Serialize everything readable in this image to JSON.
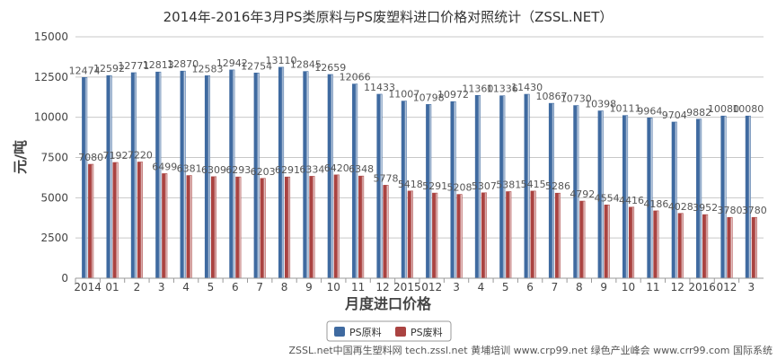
{
  "chart_data": {
    "type": "bar",
    "title": "2014年-2016年3月PS类原料与PS废塑料进口价格对照统计（ZSSL.NET）",
    "xlabel": "月度进口价格",
    "ylabel": "元/吨",
    "ylim": [
      0,
      15000
    ],
    "yticks": [
      0,
      2500,
      5000,
      7500,
      10000,
      12500,
      15000
    ],
    "grid": true,
    "legend_position": "bottom-center",
    "categories": [
      "2014",
      "01",
      "2",
      "3",
      "4",
      "5",
      "6",
      "7",
      "8",
      "9",
      "10",
      "11",
      "12",
      "2015",
      "012",
      "3",
      "4",
      "5",
      "6",
      "7",
      "8",
      "9",
      "10",
      "11",
      "12",
      "2016",
      "012",
      "3"
    ],
    "x_tick_labels": [
      "2014",
      "01",
      "2",
      "3",
      "4",
      "5",
      "6",
      "7",
      "8",
      "9",
      "10",
      "11",
      "12",
      "2015",
      "012",
      "3",
      "4",
      "5",
      "6",
      "7",
      "8",
      "9",
      "10",
      "11",
      "12",
      "2016",
      "012",
      "3"
    ],
    "series": [
      {
        "name": "PS原料",
        "color": "#3f6aa0",
        "values": [
          12474,
          12592,
          12771,
          12813,
          12870,
          12583,
          12942,
          12754,
          13110,
          12845,
          12659,
          12066,
          11433,
          11007,
          10798,
          10972,
          11360,
          11336,
          11430,
          10867,
          10730,
          10398,
          10111,
          9964,
          9704,
          9882,
          10080,
          10080
        ]
      },
      {
        "name": "PS废料",
        "color": "#aa4341",
        "values": [
          7080,
          7192,
          7220,
          6499,
          6381,
          6309,
          6293,
          6203,
          6291,
          6334,
          6420,
          6348,
          5778,
          5418,
          5291,
          5208,
          5307,
          5381,
          5415,
          5286,
          4792,
          4554,
          4416,
          4186,
          4028,
          3952,
          3780,
          3780
        ]
      }
    ]
  },
  "footer_text": "ZSSL.net中国再生塑料网 tech.zssl.net 黄埔培训 www.crp99.net 绿色产业峰会 www.crr99.com 国际系统"
}
